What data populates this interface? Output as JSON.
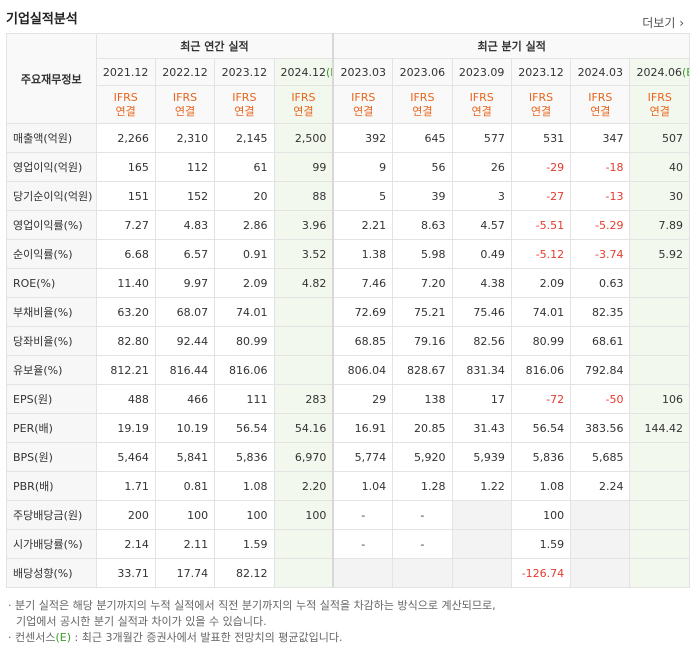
{
  "header": {
    "title": "기업실적분석",
    "more": "더보기 ›"
  },
  "table": {
    "corner": "주요재무정보",
    "annual_title": "최근 연간 실적",
    "quarter_title": "최근 분기 실적",
    "annual_periods": [
      {
        "label": "2021.12"
      },
      {
        "label": "2022.12"
      },
      {
        "label": "2023.12"
      },
      {
        "label": "2024.12",
        "estimate": "(E)"
      }
    ],
    "quarter_periods": [
      {
        "label": "2023.03"
      },
      {
        "label": "2023.06"
      },
      {
        "label": "2023.09"
      },
      {
        "label": "2023.12"
      },
      {
        "label": "2024.03"
      },
      {
        "label": "2024.06",
        "estimate": "(E)"
      }
    ],
    "basis": {
      "standard": "IFRS",
      "scope": "연결"
    },
    "groups": [
      {
        "rows": [
          {
            "label": "매출액(억원)",
            "values": [
              "2,266",
              "2,310",
              "2,145",
              "2,500",
              "392",
              "645",
              "577",
              "531",
              "347",
              "507"
            ]
          },
          {
            "label": "영업이익(억원)",
            "values": [
              "165",
              "112",
              "61",
              "99",
              "9",
              "56",
              "26",
              "-29",
              "-18",
              "40"
            ]
          },
          {
            "label": "당기순이익(억원)",
            "values": [
              "151",
              "152",
              "20",
              "88",
              "5",
              "39",
              "3",
              "-27",
              "-13",
              "30"
            ]
          }
        ]
      },
      {
        "rows": [
          {
            "label": "영업이익률(%)",
            "values": [
              "7.27",
              "4.83",
              "2.86",
              "3.96",
              "2.21",
              "8.63",
              "4.57",
              "-5.51",
              "-5.29",
              "7.89"
            ]
          },
          {
            "label": "순이익률(%)",
            "values": [
              "6.68",
              "6.57",
              "0.91",
              "3.52",
              "1.38",
              "5.98",
              "0.49",
              "-5.12",
              "-3.74",
              "5.92"
            ]
          },
          {
            "label": "ROE(%)",
            "values": [
              "11.40",
              "9.97",
              "2.09",
              "4.82",
              "7.46",
              "7.20",
              "4.38",
              "2.09",
              "0.63",
              null
            ]
          }
        ]
      },
      {
        "rows": [
          {
            "label": "부채비율(%)",
            "values": [
              "63.20",
              "68.07",
              "74.01",
              null,
              "72.69",
              "75.21",
              "75.46",
              "74.01",
              "82.35",
              null
            ]
          },
          {
            "label": "당좌비율(%)",
            "values": [
              "82.80",
              "92.44",
              "80.99",
              null,
              "68.85",
              "79.16",
              "82.56",
              "80.99",
              "68.61",
              null
            ]
          },
          {
            "label": "유보율(%)",
            "values": [
              "812.21",
              "816.44",
              "816.06",
              null,
              "806.04",
              "828.67",
              "831.34",
              "816.06",
              "792.84",
              null
            ]
          }
        ]
      },
      {
        "rows": [
          {
            "label": "EPS(원)",
            "values": [
              "488",
              "466",
              "111",
              "283",
              "29",
              "138",
              "17",
              "-72",
              "-50",
              "106"
            ]
          },
          {
            "label": "PER(배)",
            "values": [
              "19.19",
              "10.19",
              "56.54",
              "54.16",
              "16.91",
              "20.85",
              "31.43",
              "56.54",
              "383.56",
              "144.42"
            ]
          },
          {
            "label": "BPS(원)",
            "values": [
              "5,464",
              "5,841",
              "5,836",
              "6,970",
              "5,774",
              "5,920",
              "5,939",
              "5,836",
              "5,685",
              null
            ]
          },
          {
            "label": "PBR(배)",
            "values": [
              "1.71",
              "0.81",
              "1.08",
              "2.20",
              "1.04",
              "1.28",
              "1.22",
              "1.08",
              "2.24",
              null
            ]
          }
        ]
      },
      {
        "rows": [
          {
            "label": "주당배당금(원)",
            "values": [
              "200",
              "100",
              "100",
              "100",
              "-",
              "-",
              null,
              "100",
              null,
              null
            ]
          },
          {
            "label": "시가배당률(%)",
            "values": [
              "2.14",
              "2.11",
              "1.59",
              null,
              "-",
              "-",
              null,
              "1.59",
              null,
              null
            ]
          },
          {
            "label": "배당성향(%)",
            "values": [
              "33.71",
              "17.74",
              "82.12",
              null,
              null,
              null,
              null,
              "-126.74",
              null,
              null
            ]
          }
        ]
      }
    ]
  },
  "notes": {
    "first": "분기 실적은 해당 분기까지의 누적 실적에서 직전 분기까지의 누적 실적을 차감하는 방식으로 계산되므로,",
    "first_cont": "기업에서 공시한 분기 실적과 차이가 있을 수 있습니다.",
    "second_pre": "컨센서스",
    "second_mark": "(E)",
    "second_post": " : 최근 3개월간 증권사에서 발표한 전망치의 평균값입니다."
  }
}
